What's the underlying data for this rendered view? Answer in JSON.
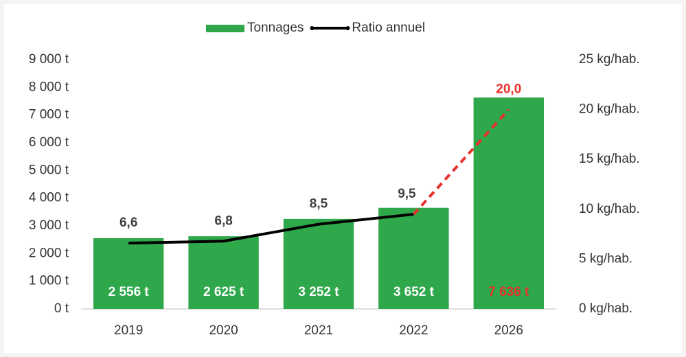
{
  "chart_data": {
    "type": "bar",
    "categories": [
      "2019",
      "2020",
      "2021",
      "2022",
      "2026"
    ],
    "series": [
      {
        "name": "Tonnages",
        "type": "bar",
        "color": "#2ea84b",
        "label_color": "#ffffff",
        "values": [
          2556,
          2625,
          3252,
          3652,
          7636
        ],
        "value_labels": [
          "2 556 t",
          "2 625 t",
          "3 252 t",
          "3 652 t",
          "7 636 t"
        ]
      },
      {
        "name": "Ratio annuel",
        "type": "line",
        "axis": "y2",
        "color": "#000000",
        "label_color": "#404040",
        "values": [
          6.6,
          6.8,
          8.5,
          9.5,
          20.0
        ],
        "value_labels": [
          "6,6",
          "6,8",
          "8,5",
          "9,5",
          "20,0"
        ]
      }
    ],
    "projection_start": 3,
    "projection_color": "#e8302c",
    "ylim": [
      0,
      9000
    ],
    "yticks": [
      {
        "value": 0,
        "label": "0 t"
      },
      {
        "value": 1000,
        "label": "1 000 t"
      },
      {
        "value": 2000,
        "label": "2 000 t"
      },
      {
        "value": 3000,
        "label": "3 000 t"
      },
      {
        "value": 4000,
        "label": "4 000 t"
      },
      {
        "value": 5000,
        "label": "5 000 t"
      },
      {
        "value": 6000,
        "label": "6 000 t"
      },
      {
        "value": 7000,
        "label": "7 000 t"
      },
      {
        "value": 8000,
        "label": "8 000 t"
      },
      {
        "value": 9000,
        "label": "9 000 t"
      }
    ],
    "y2lim": [
      0,
      25
    ],
    "y2ticks": [
      {
        "value": 0,
        "label": "0 kg/hab."
      },
      {
        "value": 5,
        "label": "5 kg/hab."
      },
      {
        "value": 10,
        "label": "10 kg/hab."
      },
      {
        "value": 15,
        "label": "15 kg/hab."
      },
      {
        "value": 20,
        "label": "20 kg/hab."
      },
      {
        "value": 25,
        "label": "25 kg/hab."
      }
    ],
    "legend": "top",
    "grid": false
  }
}
